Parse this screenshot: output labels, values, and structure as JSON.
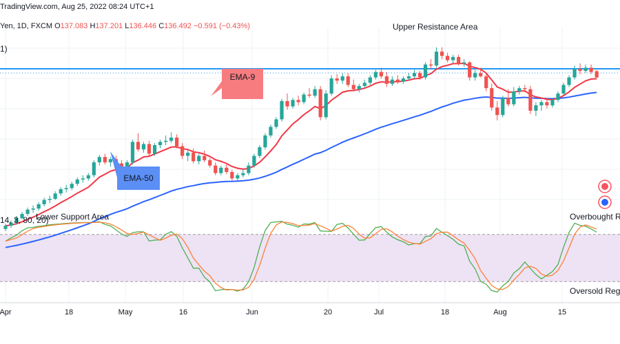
{
  "header": {
    "source": "TradingView.com, Aug 25, 2022 08:24 UTC+1",
    "symbol": "Yen, 1D, FXCM",
    "o_label": "O",
    "o_value": "137.083",
    "h_label": "H",
    "h_value": "137.201",
    "l_label": "L",
    "l_value": "136.446",
    "c_label": "C",
    "c_value": "136.492",
    "change": "−0.591 (−0.43%)"
  },
  "annotations": {
    "upper_resistance": "Upper Resistance Area",
    "lower_support": "Lower Support Area",
    "ema9": "EMA-9",
    "ema50": "EMA-50",
    "overbought": "Overbought Region",
    "oversold": "Oversold Region",
    "left_hint_top": "1)",
    "stoch_params": "14, 3, 80, 20)"
  },
  "colors": {
    "bull": "#26a69a",
    "bear": "#ef5350",
    "ema9": "#f23645",
    "ema50": "#2962ff",
    "resistance_line": "#2196f3",
    "stoch_k": "#4caf50",
    "stoch_d": "#ff7f32",
    "stoch_band": "#ede3f5",
    "ema9_box": "#f77c80",
    "ema50_box": "#5b8ff5"
  },
  "chart_data": {
    "type": "candlestick",
    "x_ticks": [
      "Apr",
      "18",
      "May",
      "16",
      "Jun",
      "20",
      "Jul",
      "18",
      "Aug",
      "15"
    ],
    "resistance_level": 137.3,
    "price_range": [
      124.5,
      140.5
    ],
    "candles": [
      [
        122.4,
        122.9,
        122.2,
        122.7
      ],
      [
        122.7,
        123.2,
        122.5,
        123.0
      ],
      [
        123.0,
        123.6,
        122.8,
        123.4
      ],
      [
        123.4,
        124.0,
        123.3,
        123.8
      ],
      [
        123.8,
        124.4,
        123.6,
        124.2
      ],
      [
        124.2,
        124.6,
        123.9,
        124.3
      ],
      [
        124.3,
        124.9,
        124.1,
        124.7
      ],
      [
        124.7,
        125.3,
        124.5,
        125.1
      ],
      [
        125.1,
        125.5,
        124.8,
        125.2
      ],
      [
        125.2,
        125.9,
        125.1,
        125.7
      ],
      [
        125.7,
        126.3,
        125.5,
        126.1
      ],
      [
        126.1,
        126.5,
        125.8,
        126.2
      ],
      [
        126.2,
        126.8,
        126.0,
        126.6
      ],
      [
        126.6,
        127.2,
        126.4,
        127.0
      ],
      [
        127.0,
        127.4,
        126.7,
        127.1
      ],
      [
        127.1,
        127.6,
        126.9,
        127.4
      ],
      [
        127.4,
        128.8,
        127.2,
        128.6
      ],
      [
        128.6,
        129.3,
        128.3,
        129.1
      ],
      [
        129.1,
        129.4,
        128.4,
        128.6
      ],
      [
        128.6,
        129.1,
        128.2,
        128.9
      ],
      [
        128.9,
        129.2,
        128.3,
        128.5
      ],
      [
        128.5,
        128.8,
        127.8,
        128.0
      ],
      [
        128.0,
        128.8,
        127.8,
        128.6
      ],
      [
        128.6,
        130.7,
        128.4,
        130.5
      ],
      [
        130.5,
        131.3,
        129.6,
        129.8
      ],
      [
        129.8,
        130.5,
        129.5,
        130.3
      ],
      [
        130.3,
        130.6,
        129.2,
        129.4
      ],
      [
        129.4,
        130.4,
        129.2,
        130.2
      ],
      [
        130.2,
        130.7,
        129.9,
        130.5
      ],
      [
        130.5,
        131.1,
        130.2,
        130.6
      ],
      [
        130.6,
        131.4,
        130.4,
        130.9
      ],
      [
        130.9,
        131.2,
        129.9,
        130.1
      ],
      [
        130.1,
        130.4,
        128.9,
        129.2
      ],
      [
        129.2,
        129.8,
        128.7,
        129.5
      ],
      [
        129.5,
        129.9,
        128.5,
        128.7
      ],
      [
        128.7,
        129.4,
        128.4,
        129.2
      ],
      [
        129.2,
        129.7,
        128.6,
        128.8
      ],
      [
        128.8,
        129.0,
        128.1,
        128.3
      ],
      [
        128.3,
        128.6,
        127.4,
        127.6
      ],
      [
        127.6,
        128.3,
        127.4,
        128.1
      ],
      [
        128.1,
        128.4,
        127.5,
        127.7
      ],
      [
        127.7,
        127.9,
        126.9,
        127.1
      ],
      [
        127.1,
        127.6,
        126.9,
        127.4
      ],
      [
        127.4,
        127.9,
        127.2,
        127.6
      ],
      [
        127.6,
        128.6,
        127.4,
        128.3
      ],
      [
        128.3,
        129.4,
        128.1,
        129.2
      ],
      [
        129.2,
        130.2,
        129.0,
        130.0
      ],
      [
        130.0,
        131.3,
        129.8,
        131.1
      ],
      [
        131.1,
        132.1,
        130.9,
        131.9
      ],
      [
        131.9,
        132.8,
        131.7,
        132.6
      ],
      [
        132.6,
        134.5,
        132.4,
        134.3
      ],
      [
        134.3,
        135.0,
        133.5,
        133.8
      ],
      [
        133.8,
        134.6,
        133.6,
        134.4
      ],
      [
        134.4,
        134.8,
        133.9,
        134.2
      ],
      [
        134.2,
        135.1,
        134.0,
        134.9
      ],
      [
        134.9,
        135.5,
        134.6,
        134.8
      ],
      [
        134.8,
        135.7,
        134.6,
        135.4
      ],
      [
        135.4,
        135.7,
        132.5,
        132.8
      ],
      [
        132.8,
        135.3,
        132.6,
        135.0
      ],
      [
        135.0,
        136.7,
        134.8,
        136.4
      ],
      [
        136.4,
        136.8,
        135.9,
        136.2
      ],
      [
        136.2,
        136.9,
        135.9,
        136.6
      ],
      [
        136.6,
        136.9,
        135.6,
        135.8
      ],
      [
        135.8,
        136.3,
        135.2,
        135.4
      ],
      [
        135.4,
        135.9,
        135.1,
        135.7
      ],
      [
        135.7,
        136.3,
        135.5,
        136.0
      ],
      [
        136.0,
        136.7,
        135.8,
        136.5
      ],
      [
        136.5,
        137.2,
        136.3,
        137.0
      ],
      [
        137.0,
        137.4,
        136.4,
        136.6
      ],
      [
        136.6,
        137.0,
        135.6,
        135.9
      ],
      [
        135.9,
        136.6,
        135.7,
        136.3
      ],
      [
        136.3,
        136.7,
        135.9,
        136.1
      ],
      [
        136.1,
        136.6,
        135.9,
        136.4
      ],
      [
        136.4,
        136.9,
        136.2,
        136.6
      ],
      [
        136.6,
        137.2,
        136.4,
        136.9
      ],
      [
        136.9,
        137.1,
        136.3,
        136.5
      ],
      [
        136.5,
        137.9,
        136.3,
        137.7
      ],
      [
        137.7,
        138.2,
        137.3,
        137.6
      ],
      [
        137.6,
        139.3,
        137.4,
        138.9
      ],
      [
        138.9,
        139.3,
        138.2,
        138.5
      ],
      [
        138.5,
        138.8,
        137.9,
        138.1
      ],
      [
        138.1,
        138.6,
        137.8,
        138.4
      ],
      [
        138.4,
        138.6,
        137.6,
        137.8
      ],
      [
        137.8,
        138.2,
        137.5,
        137.9
      ],
      [
        137.9,
        138.0,
        136.2,
        136.5
      ],
      [
        136.5,
        137.2,
        136.2,
        136.9
      ],
      [
        136.9,
        137.4,
        136.5,
        136.6
      ],
      [
        136.6,
        136.8,
        135.2,
        135.5
      ],
      [
        135.5,
        135.9,
        133.4,
        133.7
      ],
      [
        133.7,
        134.3,
        132.5,
        133.0
      ],
      [
        133.0,
        134.8,
        132.8,
        134.6
      ],
      [
        134.6,
        135.4,
        133.8,
        134.0
      ],
      [
        134.0,
        135.6,
        133.8,
        135.2
      ],
      [
        135.2,
        135.7,
        134.9,
        135.5
      ],
      [
        135.5,
        135.8,
        135.1,
        135.4
      ],
      [
        135.4,
        135.7,
        133.1,
        133.4
      ],
      [
        133.4,
        134.2,
        132.9,
        133.9
      ],
      [
        133.9,
        134.4,
        133.4,
        134.2
      ],
      [
        134.2,
        134.6,
        133.6,
        133.9
      ],
      [
        133.9,
        134.6,
        133.7,
        134.4
      ],
      [
        134.4,
        135.2,
        134.2,
        135.0
      ],
      [
        135.0,
        136.0,
        134.8,
        135.8
      ],
      [
        135.8,
        136.7,
        135.6,
        136.5
      ],
      [
        136.5,
        137.6,
        136.3,
        137.3
      ],
      [
        137.3,
        137.8,
        136.8,
        137.1
      ],
      [
        137.1,
        137.7,
        136.9,
        137.4
      ],
      [
        137.4,
        137.7,
        136.8,
        137.0
      ],
      [
        137.08,
        137.2,
        136.45,
        136.49
      ]
    ],
    "stoch_upper": 80,
    "stoch_lower": 20
  }
}
